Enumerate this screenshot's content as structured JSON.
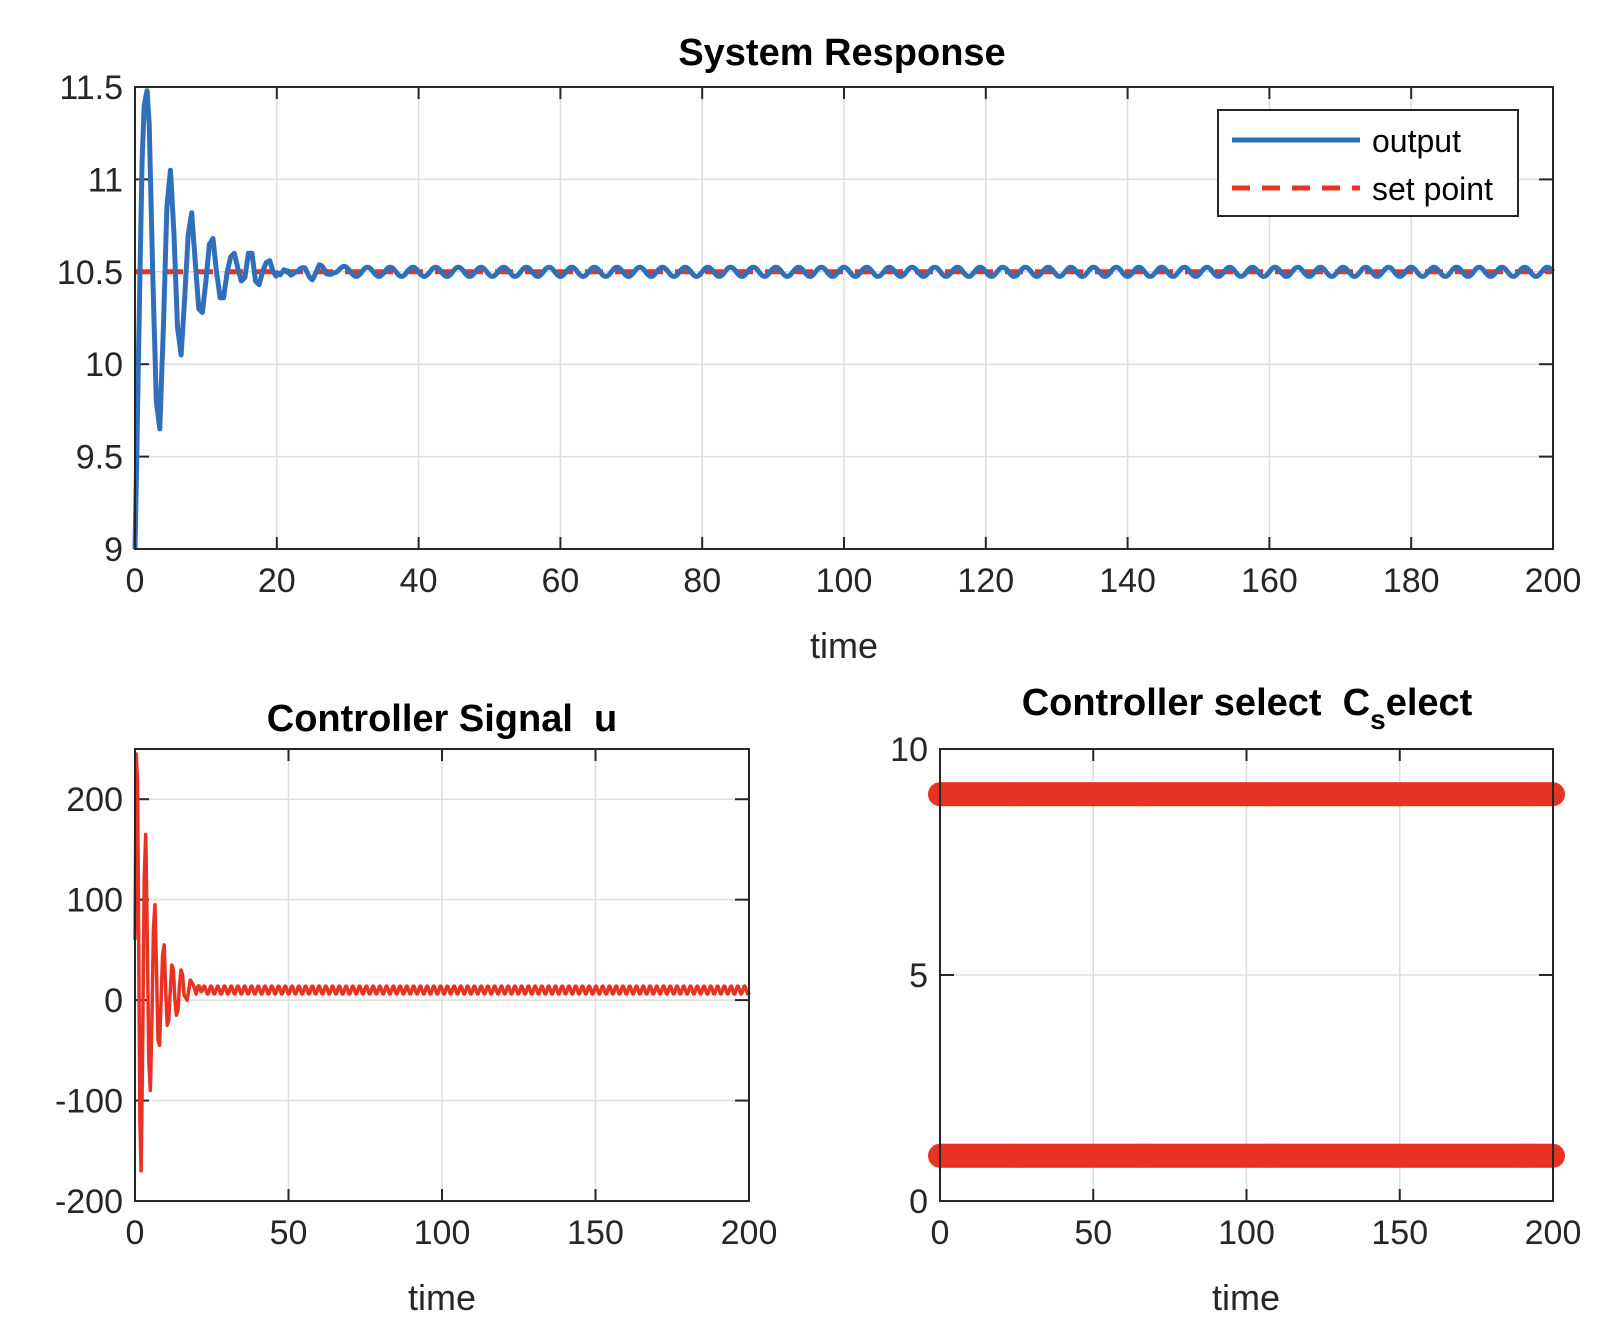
{
  "figure": {
    "colors": {
      "output": "#3070BB",
      "setpoint": "#E83224",
      "u": "#E83224",
      "select": "#E83224",
      "grid": "#DDDDDD",
      "axis": "#262626"
    }
  },
  "chart_data": [
    {
      "id": "response",
      "type": "line",
      "title": "System Response",
      "xlabel": "time",
      "ylabel": "",
      "xlim": [
        0,
        200
      ],
      "ylim": [
        9,
        11.5
      ],
      "xticks": [
        0,
        20,
        40,
        60,
        80,
        100,
        120,
        140,
        160,
        180,
        200
      ],
      "xtick_labels": [
        "0",
        "20",
        "40",
        "60",
        "80",
        "100",
        "120",
        "140",
        "160",
        "180",
        "200"
      ],
      "yticks": [
        9,
        9.5,
        10,
        10.5,
        11,
        11.5
      ],
      "ytick_labels": [
        "9",
        "9.5",
        "10",
        "10.5",
        "11",
        "11.5"
      ],
      "grid": true,
      "legend": {
        "position": "top-right",
        "entries": [
          "output",
          "set point"
        ]
      },
      "series": [
        {
          "name": "output",
          "style": "solid",
          "color": "#3070BB",
          "x": [
            0,
            0.3,
            0.7,
            1.0,
            1.3,
            1.7,
            2.0,
            2.5,
            3.0,
            3.5,
            4.0,
            4.5,
            5.0,
            5.5,
            6.0,
            6.5,
            7.0,
            7.5,
            8.0,
            8.5,
            9.0,
            9.5,
            10.0,
            10.5,
            11.0,
            11.5,
            12.0,
            12.5,
            13.0,
            13.5,
            14.0,
            14.5,
            15.0,
            15.5,
            16.0,
            16.5,
            17.0,
            17.5,
            18.0,
            18.5,
            19.0,
            19.5,
            20.0,
            20.5,
            21.0,
            21.5,
            22.0,
            23.0,
            24.0,
            25.0,
            26.0,
            27.0,
            28.0,
            30.0,
            35.0,
            40.0,
            50.0,
            60.0,
            80.0,
            100.0,
            120.0,
            140.0,
            160.0,
            180.0,
            200.0
          ],
          "y": [
            9.0,
            9.6,
            10.5,
            11.1,
            11.4,
            11.48,
            11.3,
            10.5,
            9.8,
            9.65,
            10.2,
            10.85,
            11.05,
            10.7,
            10.2,
            10.05,
            10.35,
            10.7,
            10.82,
            10.55,
            10.3,
            10.28,
            10.45,
            10.65,
            10.68,
            10.5,
            10.36,
            10.36,
            10.5,
            10.58,
            10.6,
            10.52,
            10.45,
            10.47,
            10.6,
            10.6,
            10.45,
            10.43,
            10.5,
            10.55,
            10.56,
            10.5,
            10.47,
            10.47,
            10.52,
            10.53,
            10.5,
            10.48,
            10.52,
            10.48,
            10.52,
            10.48,
            10.52,
            10.5,
            10.5,
            10.5,
            10.5,
            10.5,
            10.5,
            10.5,
            10.5,
            10.5,
            10.5,
            10.5,
            10.5
          ],
          "steady_oscillation_amplitude": 0.025
        },
        {
          "name": "set point",
          "style": "dashed",
          "color": "#E83224",
          "x": [
            0,
            200
          ],
          "y": [
            10.5,
            10.5
          ]
        }
      ]
    },
    {
      "id": "control",
      "type": "line",
      "title": "Controller Signal  u",
      "xlabel": "time",
      "ylabel": "",
      "xlim": [
        0,
        200
      ],
      "ylim": [
        -200,
        250
      ],
      "xticks": [
        0,
        50,
        100,
        150,
        200
      ],
      "xtick_labels": [
        "0",
        "50",
        "100",
        "150",
        "200"
      ],
      "yticks": [
        -200,
        -100,
        0,
        100,
        200
      ],
      "ytick_labels": [
        "-200",
        "-100",
        "0",
        "100",
        "200"
      ],
      "grid": true,
      "series": [
        {
          "name": "",
          "color": "#E83224",
          "x": [
            0,
            0.4,
            0.8,
            1.2,
            1.6,
            2.0,
            2.5,
            3.0,
            3.5,
            4.0,
            4.5,
            5.0,
            5.5,
            6.0,
            6.5,
            7.0,
            7.5,
            8.0,
            8.5,
            9.0,
            9.5,
            10.0,
            10.5,
            11.0,
            11.5,
            12.0,
            12.5,
            13.0,
            13.5,
            14.0,
            14.5,
            15.0,
            15.5,
            16.0,
            17.0,
            18.0,
            19.0,
            20.0,
            21.0,
            22.0,
            24.0,
            26.0,
            30.0,
            40.0,
            60.0,
            80.0,
            100.0,
            120.0,
            140.0,
            160.0,
            180.0,
            200.0
          ],
          "y": [
            60,
            245,
            220,
            60,
            -120,
            -170,
            -40,
            120,
            165,
            60,
            -60,
            -90,
            -20,
            70,
            95,
            30,
            -40,
            -45,
            0,
            45,
            55,
            10,
            -25,
            -20,
            10,
            35,
            30,
            0,
            -15,
            -10,
            15,
            30,
            25,
            5,
            0,
            20,
            15,
            5,
            15,
            10,
            10,
            10,
            10,
            10,
            10,
            10,
            10,
            10,
            10,
            10,
            10,
            10
          ],
          "steady_oscillation_amplitude": 4
        }
      ]
    },
    {
      "id": "select",
      "type": "scatter",
      "title": "Controller select  C",
      "title_subscript": "s",
      "title_suffix": "elect",
      "xlabel": "time",
      "ylabel": "",
      "xlim": [
        0,
        200
      ],
      "ylim": [
        0,
        10
      ],
      "xticks": [
        0,
        50,
        100,
        150,
        200
      ],
      "xtick_labels": [
        "0",
        "50",
        "100",
        "150",
        "200"
      ],
      "yticks": [
        0,
        5,
        10
      ],
      "ytick_labels": [
        "0",
        "5",
        "10"
      ],
      "grid": true,
      "series": [
        {
          "name": "",
          "color": "#E83224",
          "marker": "circle",
          "levels": [
            9,
            1
          ],
          "x_range": [
            0,
            200
          ],
          "x_step": 0.5
        }
      ]
    }
  ]
}
